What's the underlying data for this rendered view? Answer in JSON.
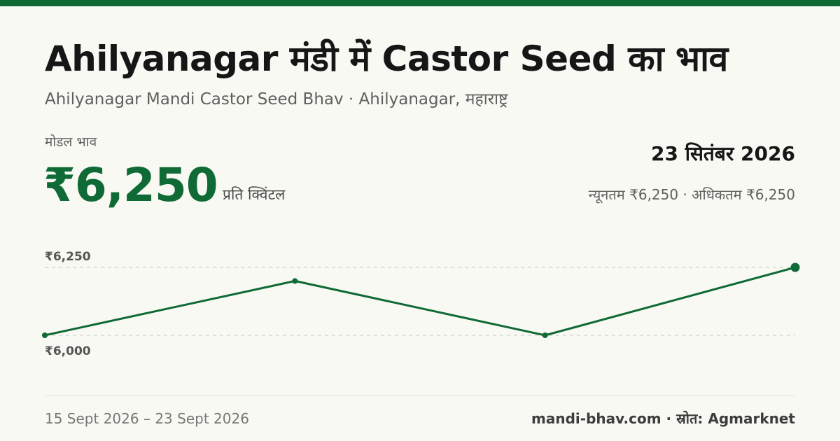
{
  "header": {
    "title": "Ahilyanagar मंडी में Castor Seed का भाव",
    "subtitle": "Ahilyanagar Mandi Castor Seed Bhav · Ahilyanagar, महाराष्ट्र"
  },
  "summary": {
    "model_label": "मोडल भाव",
    "model_price": "₹6,250",
    "unit": "प्रति क्विंटल",
    "date": "23 सितंबर 2026",
    "min_max": "न्यूनतम ₹6,250 · अधिकतम ₹6,250"
  },
  "chart_data": {
    "type": "line",
    "x": [
      "15 Sept 2026",
      "",
      "",
      "23 Sept 2026"
    ],
    "series": [
      {
        "values": [
          6000,
          6200,
          6000,
          6250
        ],
        "color": "#0f6a36"
      }
    ],
    "ylim": [
      6000,
      6250
    ],
    "ticks": [
      {
        "value": 6250,
        "label": "₹6,250"
      },
      {
        "value": 6000,
        "label": "₹6,000"
      }
    ],
    "grid": "dashed horizontal lines at tick values",
    "xlabel": "",
    "ylabel": ""
  },
  "footer": {
    "date_range": "15 Sept 2026 – 23 Sept 2026",
    "source": "mandi-bhav.com · स्रोत: Agmarknet"
  },
  "colors": {
    "accent": "#0f6a36",
    "background": "#f9f9f4",
    "text": "#161616",
    "muted": "#5f5f5f"
  }
}
